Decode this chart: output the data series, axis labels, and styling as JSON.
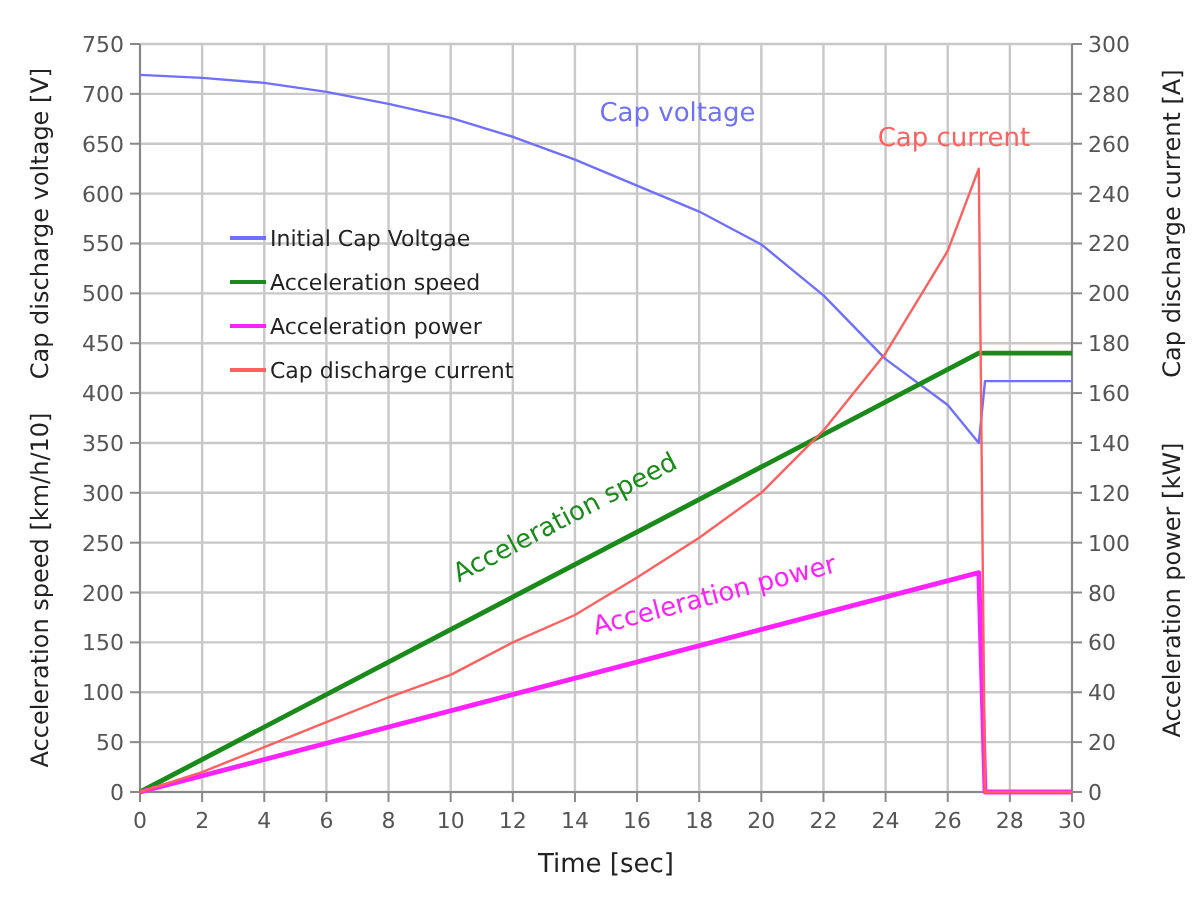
{
  "chart_data": {
    "type": "line",
    "xlabel": "Time [sec]",
    "ylabel": "Cap discharge voltage [V]",
    "y2label": "Cap discharge current [A]",
    "xlim": [
      0,
      30
    ],
    "xticks": [
      0,
      2,
      4,
      6,
      8,
      10,
      12,
      14,
      16,
      18,
      20,
      22,
      24,
      26,
      28,
      30
    ],
    "ylim": [
      0,
      750
    ],
    "yticks": [
      0,
      50,
      100,
      150,
      200,
      250,
      300,
      350,
      400,
      450,
      500,
      550,
      600,
      650,
      700,
      750
    ],
    "y2lim": [
      0,
      300
    ],
    "y2ticks": [
      0,
      20,
      40,
      60,
      80,
      100,
      120,
      140,
      160,
      180,
      200,
      220,
      240,
      260,
      280,
      300
    ],
    "grid": true,
    "legend": "left",
    "line_style": "solid",
    "marker": "none",
    "series": [
      {
        "name": "Initial Cap Voltgae",
        "color": "#7070ff",
        "x": [
          0,
          2,
          4,
          6,
          8,
          10,
          12,
          14,
          16,
          18,
          20,
          22,
          24,
          26,
          27,
          27.2,
          30
        ],
        "values": [
          719,
          716,
          711,
          702,
          690,
          676,
          657,
          634,
          608,
          582,
          549,
          498,
          434,
          388,
          350,
          412,
          412
        ]
      },
      {
        "name": "Acceleration speed",
        "color": "#1a8a1a",
        "x": [
          0,
          27,
          30
        ],
        "values": [
          0,
          440,
          440
        ]
      },
      {
        "name": "Acceleration power",
        "color": "#ff22ff",
        "axis": "y2",
        "x": [
          0,
          27,
          27.2,
          30
        ],
        "values": [
          0,
          88,
          0,
          0
        ]
      },
      {
        "name": "Cap discharge current",
        "color": "#ff6060",
        "axis": "y2",
        "x": [
          0,
          2,
          4,
          6,
          8,
          10,
          12,
          14,
          16,
          18,
          20,
          22,
          24,
          26,
          27,
          27.2,
          30
        ],
        "values": [
          0,
          8,
          18,
          28,
          38,
          47,
          60,
          71,
          86,
          102,
          120,
          145,
          176,
          217,
          250,
          0,
          0
        ]
      }
    ],
    "annotations": [
      "Acceleration speed [km/h/10]",
      "Acceleration power [kW]",
      "Cap voltage",
      "Cap current",
      "Acceleration speed",
      "Acceleration power"
    ]
  }
}
